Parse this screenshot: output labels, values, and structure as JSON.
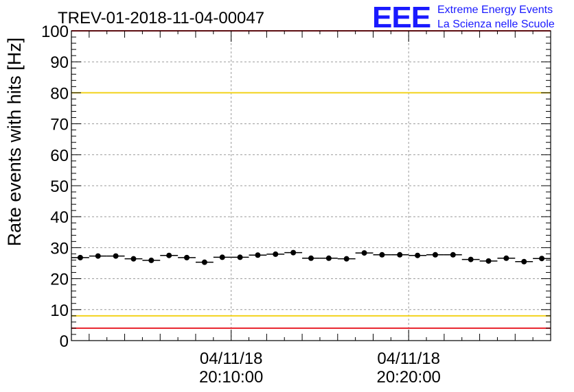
{
  "chart_data": {
    "type": "scatter",
    "title": "TREV-01-2018-11-04-00047",
    "ylabel": "Rate events with hits [Hz]",
    "xlabel": "",
    "ylim": [
      0,
      100
    ],
    "yticks": [
      0,
      10,
      20,
      30,
      40,
      50,
      60,
      70,
      80,
      90,
      100
    ],
    "xlim_minutes": [
      0,
      27
    ],
    "xticks": [
      {
        "minute": 9,
        "date": "04/11/18",
        "time": "20:10:00"
      },
      {
        "minute": 19,
        "date": "04/11/18",
        "time": "20:20:00"
      }
    ],
    "grid": true,
    "series": [
      {
        "name": "rate",
        "marker": "circle",
        "color": "#000000",
        "bin_width_minutes": 1,
        "x_minutes": [
          0.5,
          1.5,
          2.5,
          3.5,
          4.5,
          5.5,
          6.5,
          7.5,
          8.5,
          9.5,
          10.5,
          11.5,
          12.5,
          13.5,
          14.5,
          15.5,
          16.5,
          17.5,
          18.5,
          19.5,
          20.5,
          21.5,
          22.5,
          23.5,
          24.5,
          25.5,
          26.5
        ],
        "values": [
          26.8,
          27.3,
          27.3,
          26.4,
          25.9,
          27.5,
          26.8,
          25.3,
          26.9,
          26.9,
          27.6,
          27.9,
          28.4,
          26.6,
          26.6,
          26.4,
          28.3,
          27.7,
          27.7,
          27.5,
          27.7,
          27.7,
          26.2,
          25.7,
          26.6,
          25.5,
          26.5
        ]
      }
    ],
    "reference_lines": [
      {
        "name": "upper-alarm",
        "value": 100,
        "color": "#e8202a"
      },
      {
        "name": "upper-warning",
        "value": 80,
        "color": "#f2d21b"
      },
      {
        "name": "lower-warning",
        "value": 8,
        "color": "#f2d21b"
      },
      {
        "name": "lower-alarm",
        "value": 4,
        "color": "#e8202a"
      }
    ]
  },
  "logo": {
    "letters": "EEE",
    "line1": "Extreme Energy Events",
    "line2": "La Scienza nelle Scuole",
    "color": "#1a1aff"
  }
}
